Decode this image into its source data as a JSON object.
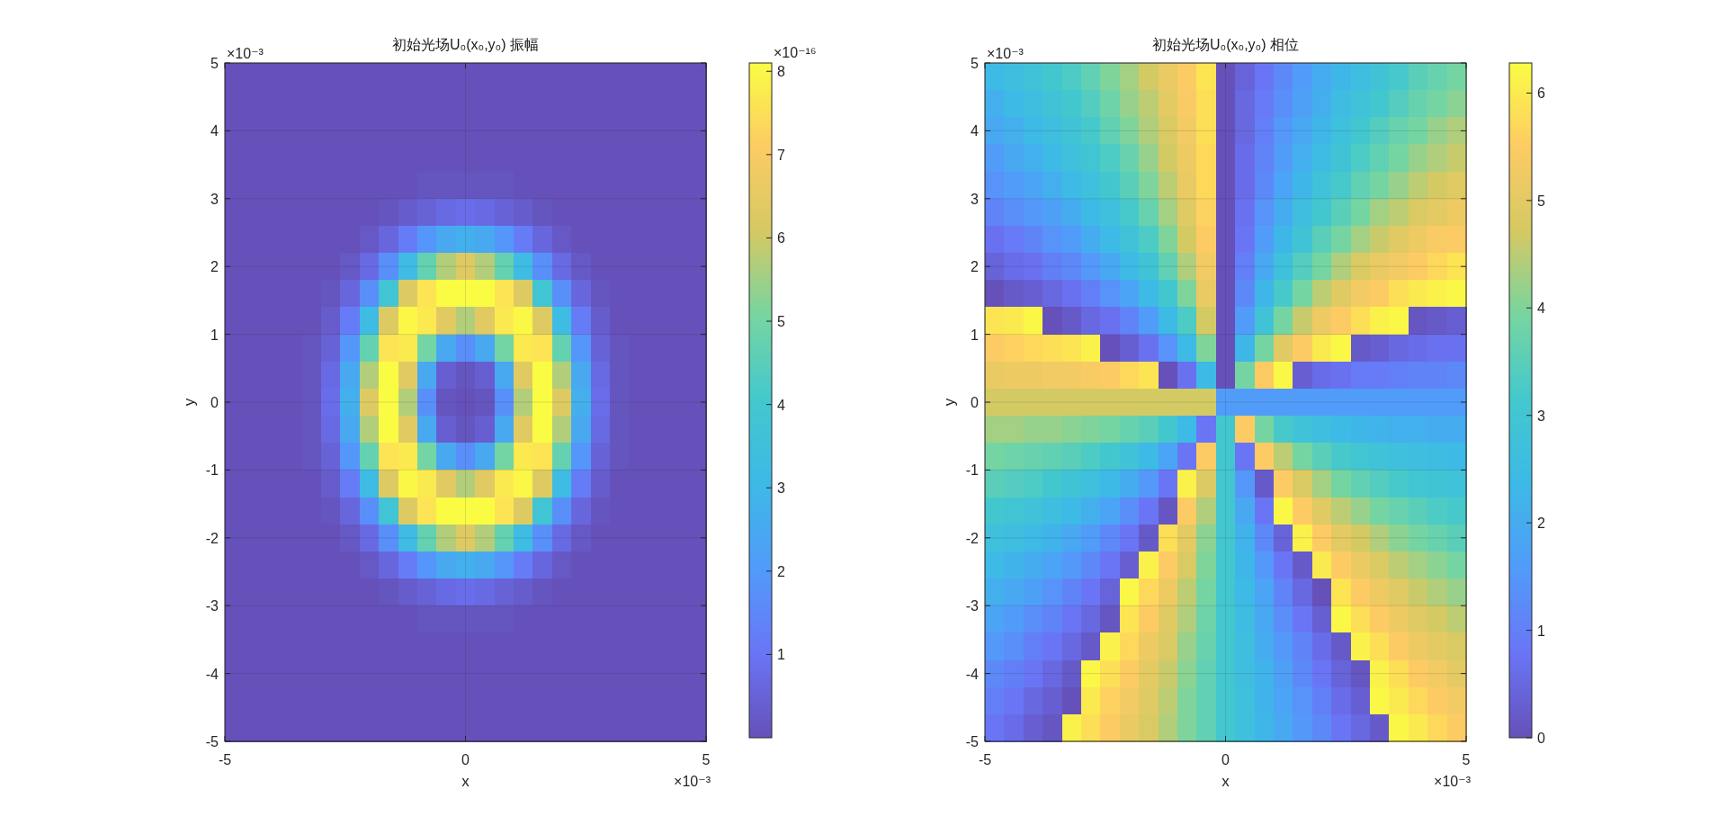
{
  "chart_data": [
    {
      "type": "heatmap",
      "title": "初始光场U₀(x₀,y₀) 振幅",
      "xlabel": "x",
      "ylabel": "y",
      "x": [
        -4.8,
        -4.4,
        -4.0,
        -3.6,
        -3.2,
        -2.8,
        -2.4,
        -2.0,
        -1.6,
        -1.2,
        -0.8,
        -0.4,
        0,
        0.4,
        0.8,
        1.2,
        1.6,
        2.0,
        2.4,
        2.8,
        3.2,
        3.6,
        4.0,
        4.4,
        4.8
      ],
      "y": [
        4.8,
        4.4,
        4.0,
        3.6,
        3.2,
        2.8,
        2.4,
        2.0,
        1.6,
        1.2,
        0.8,
        0.4,
        0,
        -0.4,
        -0.8,
        -1.2,
        -1.6,
        -2.0,
        -2.4,
        -2.8,
        -3.2,
        -3.6,
        -4.0,
        -4.4,
        -4.8
      ],
      "xlim": [
        -5,
        5
      ],
      "xticks": [
        -5,
        0,
        5
      ],
      "ylim": [
        -5,
        5
      ],
      "yticks": [
        -5,
        -4,
        -3,
        -2,
        -1,
        0,
        1,
        2,
        3,
        4,
        5
      ],
      "clim": [
        0,
        8.1
      ],
      "cticks": [
        1,
        2,
        3,
        4,
        5,
        6,
        7,
        8
      ],
      "grid": true,
      "annotations": [
        "×10⁻³",
        "×10⁻³",
        "×10⁻¹⁶"
      ],
      "cells": [
        [
          0,
          0,
          0,
          0,
          0,
          0,
          0,
          0,
          0,
          0,
          0,
          0,
          0,
          0,
          0,
          0,
          0,
          0,
          0,
          0,
          0,
          0,
          0,
          0,
          0
        ],
        [
          0,
          0,
          0,
          0,
          0,
          0,
          0,
          0,
          0,
          0,
          0,
          0,
          0,
          0,
          0,
          0,
          0,
          0,
          0,
          0,
          0,
          0,
          0,
          0,
          0
        ],
        [
          0,
          0,
          0,
          0,
          0,
          0,
          0,
          0,
          0,
          0,
          0,
          0,
          0,
          0,
          0,
          0,
          0,
          0,
          0,
          0,
          0,
          0,
          0,
          0,
          0
        ],
        [
          0,
          0,
          0,
          0,
          0,
          0,
          0,
          0,
          0,
          0,
          0,
          0,
          0,
          0,
          0,
          0,
          0,
          0,
          0,
          0,
          0,
          0,
          0,
          0,
          0
        ],
        [
          0,
          0,
          0,
          0,
          0,
          0,
          0,
          0,
          0,
          0,
          0.1,
          0.1,
          0.1,
          0.1,
          0.1,
          0,
          0,
          0,
          0,
          0,
          0,
          0,
          0,
          0,
          0
        ],
        [
          0,
          0,
          0,
          0,
          0,
          0,
          0,
          0,
          0.1,
          0.3,
          0.5,
          0.7,
          0.8,
          0.7,
          0.5,
          0.3,
          0.1,
          0,
          0,
          0,
          0,
          0,
          0,
          0,
          0
        ],
        [
          0,
          0,
          0,
          0,
          0,
          0,
          0,
          0.2,
          0.6,
          1.2,
          1.9,
          2.5,
          2.7,
          2.5,
          1.9,
          1.2,
          0.6,
          0.2,
          0,
          0,
          0,
          0,
          0,
          0,
          0
        ],
        [
          0,
          0,
          0,
          0,
          0,
          0,
          0.2,
          0.7,
          1.7,
          3.2,
          4.7,
          5.7,
          6.3,
          5.7,
          4.7,
          3.2,
          1.7,
          0.7,
          0.2,
          0,
          0,
          0,
          0,
          0,
          0
        ],
        [
          0,
          0,
          0,
          0,
          0,
          0.1,
          0.6,
          1.7,
          3.8,
          6.3,
          7.6,
          8.1,
          8.1,
          8.1,
          7.6,
          6.3,
          3.8,
          1.7,
          0.6,
          0.1,
          0,
          0,
          0,
          0,
          0
        ],
        [
          0,
          0,
          0,
          0,
          0,
          0.3,
          1.2,
          3.2,
          6.3,
          8.0,
          7.7,
          6.4,
          5.7,
          6.4,
          7.7,
          8.0,
          6.3,
          3.2,
          1.2,
          0.3,
          0,
          0,
          0,
          0,
          0
        ],
        [
          0,
          0,
          0,
          0,
          0.1,
          0.5,
          1.9,
          4.7,
          7.6,
          7.7,
          5.0,
          2.5,
          1.7,
          2.5,
          5.0,
          7.7,
          7.6,
          4.7,
          1.9,
          0.5,
          0.1,
          0,
          0,
          0,
          0
        ],
        [
          0,
          0,
          0,
          0,
          0.1,
          0.7,
          2.5,
          5.7,
          8.1,
          6.4,
          2.5,
          0.4,
          0.1,
          0.4,
          2.5,
          6.4,
          8.1,
          5.7,
          2.5,
          0.7,
          0.1,
          0,
          0,
          0,
          0
        ],
        [
          0,
          0,
          0,
          0,
          0.1,
          0.8,
          2.7,
          6.3,
          8.1,
          5.7,
          1.7,
          0.1,
          0,
          0.1,
          1.7,
          5.7,
          8.1,
          6.3,
          2.7,
          0.8,
          0.1,
          0,
          0,
          0,
          0
        ],
        [
          0,
          0,
          0,
          0,
          0.1,
          0.7,
          2.5,
          5.7,
          8.1,
          6.4,
          2.5,
          0.4,
          0.1,
          0.4,
          2.5,
          6.4,
          8.1,
          5.7,
          2.5,
          0.7,
          0.1,
          0,
          0,
          0,
          0
        ],
        [
          0,
          0,
          0,
          0,
          0.1,
          0.5,
          1.9,
          4.7,
          7.6,
          7.7,
          5.0,
          2.5,
          1.7,
          2.5,
          5.0,
          7.7,
          7.6,
          4.7,
          1.9,
          0.5,
          0.1,
          0,
          0,
          0,
          0
        ],
        [
          0,
          0,
          0,
          0,
          0,
          0.3,
          1.2,
          3.2,
          6.3,
          8.0,
          7.7,
          6.4,
          5.7,
          6.4,
          7.7,
          8.0,
          6.3,
          3.2,
          1.2,
          0.3,
          0,
          0,
          0,
          0,
          0
        ],
        [
          0,
          0,
          0,
          0,
          0,
          0.1,
          0.6,
          1.7,
          3.8,
          6.3,
          7.6,
          8.1,
          8.1,
          8.1,
          7.6,
          6.3,
          3.8,
          1.7,
          0.6,
          0.1,
          0,
          0,
          0,
          0,
          0
        ],
        [
          0,
          0,
          0,
          0,
          0,
          0,
          0.2,
          0.7,
          1.7,
          3.2,
          4.7,
          5.7,
          6.3,
          5.7,
          4.7,
          3.2,
          1.7,
          0.7,
          0.2,
          0,
          0,
          0,
          0,
          0,
          0
        ],
        [
          0,
          0,
          0,
          0,
          0,
          0,
          0,
          0.2,
          0.6,
          1.2,
          1.9,
          2.5,
          2.7,
          2.5,
          1.9,
          1.2,
          0.6,
          0.2,
          0,
          0,
          0,
          0,
          0,
          0,
          0
        ],
        [
          0,
          0,
          0,
          0,
          0,
          0,
          0,
          0,
          0.1,
          0.3,
          0.5,
          0.7,
          0.8,
          0.7,
          0.5,
          0.3,
          0.1,
          0,
          0,
          0,
          0,
          0,
          0,
          0,
          0
        ],
        [
          0,
          0,
          0,
          0,
          0,
          0,
          0,
          0,
          0,
          0,
          0.1,
          0.1,
          0.1,
          0.1,
          0.1,
          0,
          0,
          0,
          0,
          0,
          0,
          0,
          0,
          0,
          0
        ],
        [
          0,
          0,
          0,
          0,
          0,
          0,
          0,
          0,
          0,
          0,
          0,
          0,
          0,
          0,
          0,
          0,
          0,
          0,
          0,
          0,
          0,
          0,
          0,
          0,
          0
        ],
        [
          0,
          0,
          0,
          0,
          0,
          0,
          0,
          0,
          0,
          0,
          0,
          0,
          0,
          0,
          0,
          0,
          0,
          0,
          0,
          0,
          0,
          0,
          0,
          0,
          0
        ],
        [
          0,
          0,
          0,
          0,
          0,
          0,
          0,
          0,
          0,
          0,
          0,
          0,
          0,
          0,
          0,
          0,
          0,
          0,
          0,
          0,
          0,
          0,
          0,
          0,
          0
        ],
        [
          0,
          0,
          0,
          0,
          0,
          0,
          0,
          0,
          0,
          0,
          0,
          0,
          0,
          0,
          0,
          0,
          0,
          0,
          0,
          0,
          0,
          0,
          0,
          0,
          0
        ]
      ]
    },
    {
      "type": "heatmap",
      "title": "初始光场U₀(x₀,y₀) 相位",
      "xlabel": "x",
      "ylabel": "y",
      "x": [
        -4.8,
        -4.4,
        -4.0,
        -3.6,
        -3.2,
        -2.8,
        -2.4,
        -2.0,
        -1.6,
        -1.2,
        -0.8,
        -0.4,
        0,
        0.4,
        0.8,
        1.2,
        1.6,
        2.0,
        2.4,
        2.8,
        3.2,
        3.6,
        4.0,
        4.4,
        4.8
      ],
      "y": [
        4.8,
        4.4,
        4.0,
        3.6,
        3.2,
        2.8,
        2.4,
        2.0,
        1.6,
        1.2,
        0.8,
        0.4,
        0,
        -0.4,
        -0.8,
        -1.2,
        -1.6,
        -2.0,
        -2.4,
        -2.8,
        -3.2,
        -3.6,
        -4.0,
        -4.4,
        -4.8
      ],
      "xlim": [
        -5,
        5
      ],
      "xticks": [
        -5,
        0,
        5
      ],
      "ylim": [
        -5,
        5
      ],
      "yticks": [
        -5,
        -4,
        -3,
        -2,
        -1,
        0,
        1,
        2,
        3,
        4,
        5
      ],
      "clim": [
        0,
        6.28
      ],
      "cticks": [
        0,
        1,
        2,
        3,
        4,
        5,
        6
      ],
      "grid": true,
      "annotations": [
        "×10⁻³",
        "×10⁻³"
      ],
      "cells": [
        [
          2.4,
          2.6,
          2.8,
          3.1,
          3.3,
          3.6,
          4.0,
          4.3,
          4.7,
          5.1,
          5.5,
          5.9,
          0,
          0.4,
          0.8,
          1.2,
          1.6,
          2.0,
          2.3,
          2.6,
          2.9,
          3.2,
          3.5,
          3.7,
          3.9
        ],
        [
          2.1,
          2.4,
          2.6,
          2.9,
          3.1,
          3.4,
          3.8,
          4.2,
          4.5,
          5.0,
          5.4,
          5.8,
          0,
          0.5,
          0.9,
          1.3,
          1.7,
          2.1,
          2.5,
          2.8,
          3.1,
          3.4,
          3.7,
          3.9,
          4.1
        ],
        [
          1.9,
          2.1,
          2.4,
          2.6,
          2.9,
          3.2,
          3.6,
          4.0,
          4.4,
          4.8,
          5.3,
          5.8,
          0,
          0.5,
          1.0,
          1.5,
          1.9,
          2.3,
          2.7,
          3.1,
          3.4,
          3.7,
          3.9,
          4.2,
          4.4
        ],
        [
          1.6,
          1.9,
          2.1,
          2.4,
          2.7,
          3.0,
          3.3,
          3.7,
          4.2,
          4.7,
          5.2,
          5.7,
          0,
          0.6,
          1.1,
          1.6,
          2.1,
          2.5,
          2.9,
          3.3,
          3.6,
          3.9,
          4.2,
          4.4,
          4.6
        ],
        [
          1.4,
          1.6,
          1.8,
          2.1,
          2.4,
          2.7,
          3.1,
          3.5,
          4.0,
          4.5,
          5.1,
          5.7,
          0,
          0.6,
          1.2,
          1.8,
          2.3,
          2.8,
          3.2,
          3.6,
          3.9,
          4.2,
          4.5,
          4.7,
          4.9
        ],
        [
          1.1,
          1.3,
          1.5,
          1.7,
          2.0,
          2.4,
          2.7,
          3.2,
          3.7,
          4.3,
          4.9,
          5.6,
          0,
          0.7,
          1.4,
          2.0,
          2.6,
          3.1,
          3.5,
          3.9,
          4.3,
          4.5,
          4.8,
          5.0,
          5.2
        ],
        [
          0.7,
          0.9,
          1.1,
          1.4,
          1.6,
          2.0,
          2.4,
          2.8,
          3.3,
          4.0,
          4.7,
          5.5,
          0,
          0.8,
          1.6,
          2.3,
          2.9,
          3.5,
          3.9,
          4.3,
          4.6,
          4.9,
          5.2,
          5.4,
          5.5
        ],
        [
          0.4,
          0.6,
          0.7,
          1.0,
          1.2,
          1.5,
          1.9,
          2.4,
          2.9,
          3.6,
          4.4,
          5.3,
          0,
          1.0,
          1.9,
          2.7,
          3.4,
          3.9,
          4.4,
          4.8,
          5.1,
          5.3,
          5.5,
          5.7,
          5.9
        ],
        [
          0.0,
          0.2,
          0.3,
          0.5,
          0.7,
          1.0,
          1.4,
          1.8,
          2.4,
          3.1,
          4.0,
          5.1,
          0,
          1.2,
          2.3,
          3.2,
          3.9,
          4.5,
          4.9,
          5.3,
          5.5,
          5.8,
          6.0,
          6.1,
          6.2
        ],
        [
          5.9,
          6.0,
          6.2,
          0.0,
          0.2,
          0.5,
          0.7,
          1.1,
          1.6,
          2.4,
          3.3,
          4.7,
          0,
          1.6,
          2.9,
          3.9,
          4.6,
          5.2,
          5.5,
          5.8,
          6.1,
          6.2,
          0.1,
          0.2,
          0.3
        ],
        [
          5.5,
          5.6,
          5.7,
          5.8,
          5.9,
          6.1,
          0.0,
          0.3,
          0.7,
          1.4,
          2.4,
          4.0,
          0,
          2.3,
          3.9,
          4.9,
          5.5,
          6.0,
          6.2,
          0.2,
          0.3,
          0.5,
          0.6,
          0.7,
          0.7
        ],
        [
          5.1,
          5.2,
          5.2,
          5.3,
          5.3,
          5.4,
          5.5,
          5.7,
          5.9,
          0.0,
          0.7,
          2.4,
          0,
          3.9,
          5.5,
          6.2,
          0.3,
          0.6,
          0.7,
          0.9,
          0.9,
          1.0,
          1.1,
          1.1,
          1.2
        ],
        [
          4.7,
          4.7,
          4.7,
          4.7,
          4.7,
          4.7,
          4.7,
          4.7,
          4.7,
          4.7,
          4.7,
          4.7,
          1.6,
          1.6,
          1.6,
          1.6,
          1.6,
          1.6,
          1.6,
          1.6,
          1.6,
          1.6,
          1.6,
          1.6,
          1.6
        ],
        [
          4.3,
          4.3,
          4.2,
          4.2,
          4.1,
          4.0,
          3.9,
          3.7,
          3.5,
          3.1,
          2.4,
          0.8,
          3.1,
          5.5,
          3.9,
          3.2,
          2.8,
          2.6,
          2.4,
          2.3,
          2.2,
          2.1,
          2.1,
          2.0,
          2.0
        ],
        [
          3.9,
          3.8,
          3.7,
          3.6,
          3.5,
          3.3,
          3.1,
          2.8,
          2.4,
          1.8,
          0.8,
          5.5,
          3.1,
          0.8,
          5.5,
          4.5,
          3.9,
          3.5,
          3.2,
          3.0,
          2.8,
          2.7,
          2.6,
          2.5,
          2.4
        ],
        [
          3.5,
          3.4,
          3.3,
          3.1,
          2.9,
          2.7,
          2.4,
          2.0,
          1.5,
          0.8,
          6.1,
          4.8,
          3.1,
          1.5,
          0.2,
          5.5,
          4.8,
          4.3,
          3.9,
          3.6,
          3.4,
          3.2,
          3.0,
          2.9,
          2.8
        ],
        [
          3.1,
          3.0,
          2.8,
          2.6,
          2.4,
          2.1,
          1.8,
          1.3,
          0.8,
          0.1,
          5.5,
          4.4,
          3.1,
          1.9,
          0.8,
          6.2,
          5.5,
          4.9,
          4.5,
          4.2,
          3.9,
          3.7,
          3.5,
          3.3,
          3.2
        ],
        [
          2.7,
          2.6,
          2.4,
          2.2,
          1.9,
          1.6,
          1.2,
          0.8,
          0.2,
          5.8,
          5.0,
          4.1,
          3.1,
          2.2,
          1.2,
          0.4,
          6.1,
          5.5,
          5.0,
          4.7,
          4.4,
          4.1,
          3.9,
          3.7,
          3.5
        ],
        [
          2.4,
          2.2,
          2.0,
          1.8,
          1.5,
          1.2,
          0.8,
          0.3,
          6.1,
          5.5,
          4.8,
          4.0,
          3.1,
          2.3,
          1.5,
          0.8,
          0.2,
          6.0,
          5.5,
          5.1,
          4.8,
          4.5,
          4.3,
          4.1,
          3.9
        ],
        [
          2.1,
          1.9,
          1.7,
          1.4,
          1.1,
          0.8,
          0.4,
          6.2,
          5.7,
          5.2,
          4.5,
          3.9,
          3.1,
          2.4,
          1.8,
          1.1,
          0.5,
          0.0,
          5.9,
          5.5,
          5.2,
          4.9,
          4.6,
          4.4,
          4.2
        ],
        [
          1.8,
          1.6,
          1.3,
          1.1,
          0.8,
          0.5,
          0.1,
          5.9,
          5.5,
          4.9,
          4.4,
          3.8,
          3.1,
          2.5,
          1.9,
          1.3,
          0.8,
          0.3,
          6.2,
          5.8,
          5.5,
          5.2,
          4.9,
          4.7,
          4.5
        ],
        [
          1.5,
          1.3,
          1.0,
          0.8,
          0.5,
          0.2,
          6.1,
          5.7,
          5.2,
          4.8,
          4.2,
          3.7,
          3.1,
          2.6,
          2.0,
          1.5,
          1.1,
          0.6,
          0.2,
          6.1,
          5.8,
          5.5,
          5.2,
          5.0,
          4.8
        ],
        [
          1.2,
          1.0,
          0.8,
          0.5,
          0.2,
          6.2,
          5.8,
          5.5,
          5.0,
          4.6,
          4.1,
          3.6,
          3.1,
          2.6,
          2.2,
          1.7,
          1.2,
          0.8,
          0.4,
          0.1,
          6.1,
          5.8,
          5.5,
          5.3,
          5.0
        ],
        [
          1.0,
          0.8,
          0.5,
          0.3,
          0.0,
          6.0,
          5.6,
          5.3,
          4.9,
          4.5,
          4.0,
          3.6,
          3.1,
          2.7,
          2.2,
          1.8,
          1.4,
          1.0,
          0.6,
          0.3,
          6.2,
          6.0,
          5.7,
          5.5,
          5.3
        ],
        [
          0.8,
          0.6,
          0.3,
          0.1,
          6.1,
          5.8,
          5.5,
          5.1,
          4.8,
          4.4,
          4.0,
          3.6,
          3.1,
          2.7,
          2.3,
          1.9,
          1.5,
          1.2,
          0.8,
          0.5,
          0.2,
          6.2,
          6.0,
          5.7,
          5.5
        ]
      ]
    }
  ]
}
